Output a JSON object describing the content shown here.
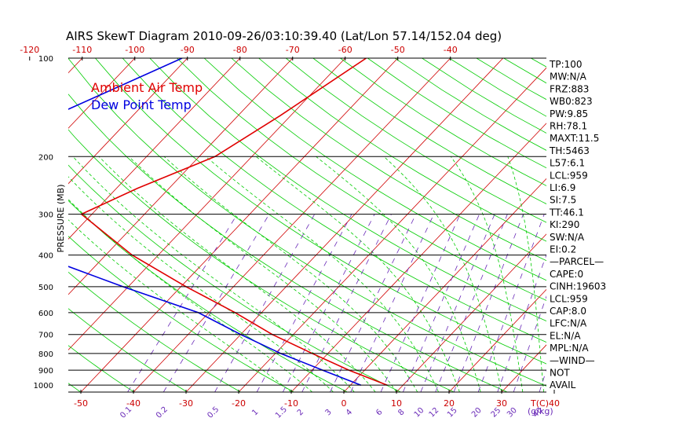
{
  "chart_data": {
    "type": "line",
    "title": "AIRS SkewT Diagram 2010-09-26/03:10:39.40 (Lat/Lon 57.14/152.04 deg)",
    "ylabel": "PRESSURE (MB)",
    "xlabel_bottom_unit": "T(C)",
    "mixing_ratio_unit": "(g/kg)",
    "pressure_levels": [
      100,
      200,
      300,
      400,
      500,
      600,
      700,
      800,
      900,
      1000
    ],
    "top_temp_ticks": [
      "-120",
      "-110",
      "-100",
      "-90",
      "-80",
      "-70",
      "-60",
      "-50",
      "-40"
    ],
    "bottom_temp_ticks": [
      "-50",
      "-40",
      "-30",
      "-20",
      "-10",
      "0",
      "10",
      "20",
      "30",
      "40"
    ],
    "mixing_ratio_labels": [
      "0.1",
      "0.2",
      "0.5",
      "1",
      "1.5",
      "2",
      "3",
      "4",
      "6",
      "8",
      "10",
      "12",
      "15",
      "20",
      "25",
      "30",
      "40"
    ],
    "legend": [
      {
        "label": "Ambient Air Temp",
        "color": "#e00000"
      },
      {
        "label": "Dew Point Temp",
        "color": "#0000e0"
      }
    ],
    "series": [
      {
        "name": "Ambient Air Temp",
        "color": "#e00000",
        "points": [
          {
            "p": 100,
            "t": -56
          },
          {
            "p": 150,
            "t": -62
          },
          {
            "p": 200,
            "t": -67
          },
          {
            "p": 250,
            "t": -76
          },
          {
            "p": 300,
            "t": -82
          },
          {
            "p": 400,
            "t": -65
          },
          {
            "p": 500,
            "t": -49
          },
          {
            "p": 600,
            "t": -35
          },
          {
            "p": 700,
            "t": -24
          },
          {
            "p": 800,
            "t": -13
          },
          {
            "p": 900,
            "t": -3
          },
          {
            "p": 1000,
            "t": 7
          }
        ]
      },
      {
        "name": "Dew Point Temp",
        "color": "#0000e0",
        "points": [
          {
            "p": 100,
            "t": -91
          },
          {
            "p": 150,
            "t": -105
          },
          {
            "p": 200,
            "t": -106
          },
          {
            "p": 250,
            "t": -108
          },
          {
            "p": 300,
            "t": -97
          },
          {
            "p": 400,
            "t": -83
          },
          {
            "p": 500,
            "t": -61
          },
          {
            "p": 600,
            "t": -42
          },
          {
            "p": 700,
            "t": -30
          },
          {
            "p": 800,
            "t": -19
          },
          {
            "p": 900,
            "t": -8
          },
          {
            "p": 1000,
            "t": 2
          }
        ]
      }
    ],
    "indices": [
      "TP:100",
      "MW:N/A",
      "FRZ:883",
      "WB0:823",
      "PW:9.85",
      "RH:78.1",
      "MAXT:11.5",
      "TH:5463",
      "L57:6.1",
      "LCL:959",
      "LI:6.9",
      "SI:7.5",
      "TT:46.1",
      "KI:290",
      "SW:N/A",
      "EI:0.2",
      "—PARCEL—",
      "CAPE:0",
      "CINH:19603",
      "LCL:959",
      "CAP:8.0",
      "LFC:N/A",
      "EL:N/A",
      "MPL:N/A",
      "—WIND—",
      "NOT",
      "AVAIL"
    ],
    "colors": {
      "isotherm": "#d00000",
      "dry_adiabat": "#00cc00",
      "moist_adiabat": "#00cc00",
      "mixing_ratio": "#6a2ab8",
      "axis": "#000000",
      "tick_label": "#cc0000",
      "mr_label": "#6a2ab8"
    }
  }
}
